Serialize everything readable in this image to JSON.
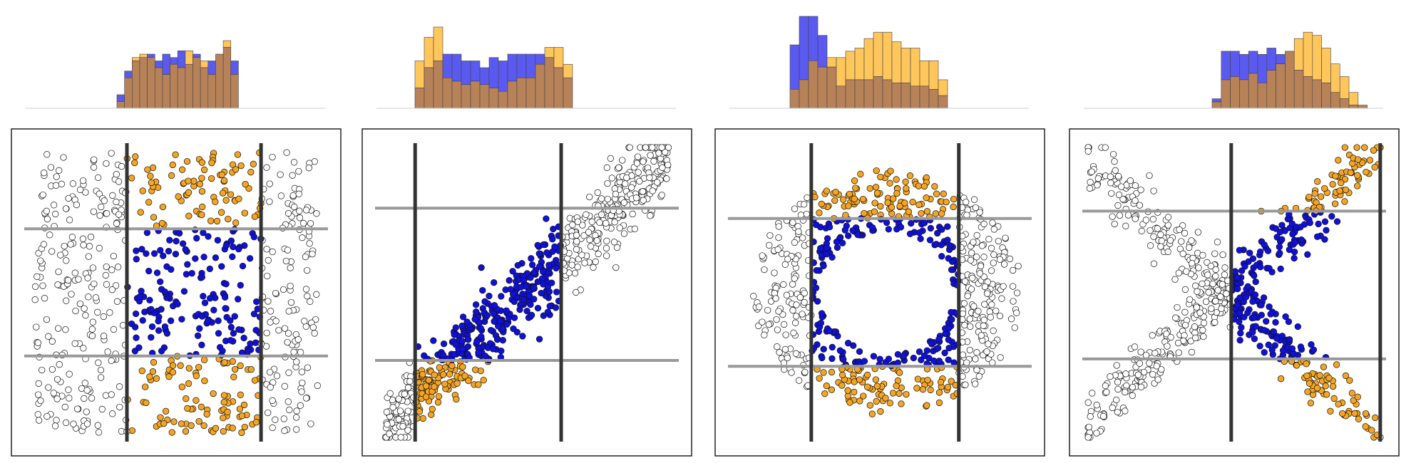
{
  "colors": {
    "class_a": "#1010dd",
    "class_b": "#f5a521",
    "other": "#ffffff",
    "hist_a": "#5a5af0",
    "hist_b": "#ffc65c",
    "hist_overlap": "#b88259",
    "cut_vertical": "#333333",
    "cut_horizontal": "#999999",
    "frame": "#222222"
  },
  "chart_data": [
    {
      "type": "scatter",
      "pattern": "uniform",
      "xlim": [
        -1,
        1
      ],
      "ylim": [
        -1,
        1
      ],
      "vertical_cuts": [
        -0.33,
        0.57
      ],
      "horizontal_cuts": [
        0.43,
        -0.43
      ],
      "histogram": {
        "type": "bar",
        "bins": 16,
        "class_a_counts": [
          4,
          11,
          14,
          15,
          16,
          14,
          16,
          15,
          17,
          13,
          16,
          12,
          14,
          16,
          18,
          14
        ],
        "class_b_counts": [
          2,
          9,
          15,
          16,
          15,
          12,
          10,
          13,
          12,
          17,
          15,
          14,
          10,
          16,
          20,
          10
        ]
      }
    },
    {
      "type": "scatter",
      "pattern": "diagonal",
      "xlim": [
        -1,
        1
      ],
      "ylim": [
        -1,
        1
      ],
      "vertical_cuts": [
        -0.75,
        0.23
      ],
      "horizontal_cuts": [
        0.57,
        -0.46
      ],
      "histogram": {
        "type": "bar",
        "bins": 17,
        "class_a_counts": [
          6,
          12,
          14,
          16,
          16,
          14,
          14,
          12,
          15,
          14,
          16,
          16,
          16,
          16,
          15,
          12,
          9
        ],
        "class_b_counts": [
          14,
          21,
          24,
          9,
          8,
          7,
          8,
          7,
          6,
          5,
          8,
          9,
          9,
          13,
          18,
          18,
          13
        ]
      }
    },
    {
      "type": "scatter",
      "pattern": "ring",
      "xlim": [
        -1,
        1
      ],
      "ylim": [
        -1,
        1
      ],
      "vertical_cuts": [
        -0.46,
        0.53
      ],
      "horizontal_cuts": [
        0.5,
        -0.5
      ],
      "histogram": {
        "type": "bar",
        "bins": 17,
        "class_a_counts": [
          20,
          29,
          29,
          23,
          13,
          7,
          9,
          9,
          9,
          10,
          9,
          8,
          8,
          7,
          7,
          6,
          4
        ],
        "class_b_counts": [
          6,
          9,
          15,
          13,
          16,
          16,
          18,
          19,
          22,
          24,
          24,
          21,
          19,
          19,
          15,
          15,
          9
        ]
      }
    },
    {
      "type": "scatter",
      "pattern": "bowtie",
      "xlim": [
        -1,
        1
      ],
      "ylim": [
        -1,
        1
      ],
      "vertical_cuts": [
        -0.02,
        0.98
      ],
      "horizontal_cuts": [
        0.55,
        -0.45
      ],
      "histogram": {
        "type": "bar",
        "bins": 17,
        "class_a_counts": [
          3,
          18,
          18,
          17,
          18,
          17,
          19,
          17,
          18,
          12,
          10,
          9,
          8,
          5,
          3,
          1,
          1
        ],
        "class_b_counts": [
          2,
          9,
          10,
          9,
          11,
          8,
          12,
          14,
          18,
          22,
          24,
          23,
          19,
          14,
          10,
          5,
          1
        ]
      }
    }
  ]
}
